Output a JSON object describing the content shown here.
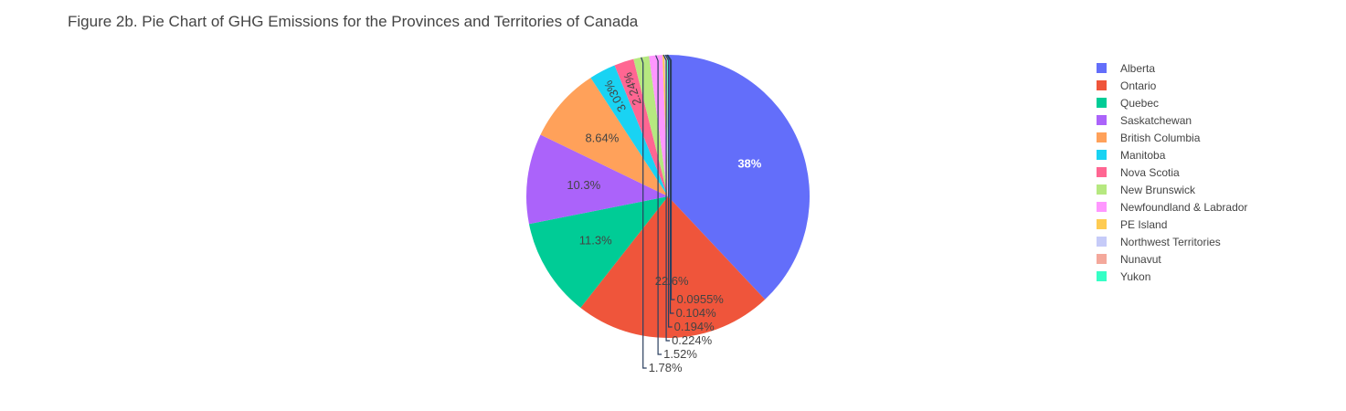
{
  "chart_data": {
    "type": "pie",
    "title": "Figure 2b. Pie Chart of GHG Emissions for the Provinces and Territories of Canada",
    "legend_position": "right",
    "slices": [
      {
        "label": "Alberta",
        "percent": 38,
        "text": "38%",
        "color": "#636efa",
        "text_color": "#ffffff",
        "text_placement": "inside"
      },
      {
        "label": "Ontario",
        "percent": 22.6,
        "text": "22.6%",
        "color": "#ef553b",
        "text_color": "#444444",
        "text_placement": "inside"
      },
      {
        "label": "Quebec",
        "percent": 11.3,
        "text": "11.3%",
        "color": "#00cc96",
        "text_color": "#444444",
        "text_placement": "inside"
      },
      {
        "label": "Saskatchewan",
        "percent": 10.3,
        "text": "10.3%",
        "color": "#ab63fa",
        "text_color": "#444444",
        "text_placement": "inside"
      },
      {
        "label": "British Columbia",
        "percent": 8.64,
        "text": "8.64%",
        "color": "#ffa15a",
        "text_color": "#444444",
        "text_placement": "inside"
      },
      {
        "label": "Manitoba",
        "percent": 3.03,
        "text": "3.03%",
        "color": "#19d3f3",
        "text_color": "#444444",
        "text_placement": "inside-rotated"
      },
      {
        "label": "Nova Scotia",
        "percent": 2.24,
        "text": "2.24%",
        "color": "#ff6692",
        "text_color": "#444444",
        "text_placement": "inside-rotated"
      },
      {
        "label": "New Brunswick",
        "percent": 1.78,
        "text": "1.78%",
        "color": "#b6e880",
        "text_color": "#444444",
        "text_placement": "outside"
      },
      {
        "label": "Newfoundland & Labrador",
        "percent": 1.52,
        "text": "1.52%",
        "color": "#ff97ff",
        "text_color": "#444444",
        "text_placement": "outside"
      },
      {
        "label": "PE Island",
        "percent": 0.224,
        "text": "0.224%",
        "color": "#fecb52",
        "text_color": "#444444",
        "text_placement": "outside"
      },
      {
        "label": "Northwest Territories",
        "percent": 0.194,
        "text": "0.194%",
        "color": "#c6cbf8",
        "text_color": "#444444",
        "text_placement": "outside"
      },
      {
        "label": "Nunavut",
        "percent": 0.104,
        "text": "0.104%",
        "color": "#f4a89b",
        "text_color": "#444444",
        "text_placement": "outside"
      },
      {
        "label": "Yukon",
        "percent": 0.0955,
        "text": "0.0955%",
        "color": "#36ffc6",
        "text_color": "#444444",
        "text_placement": "outside"
      }
    ]
  }
}
